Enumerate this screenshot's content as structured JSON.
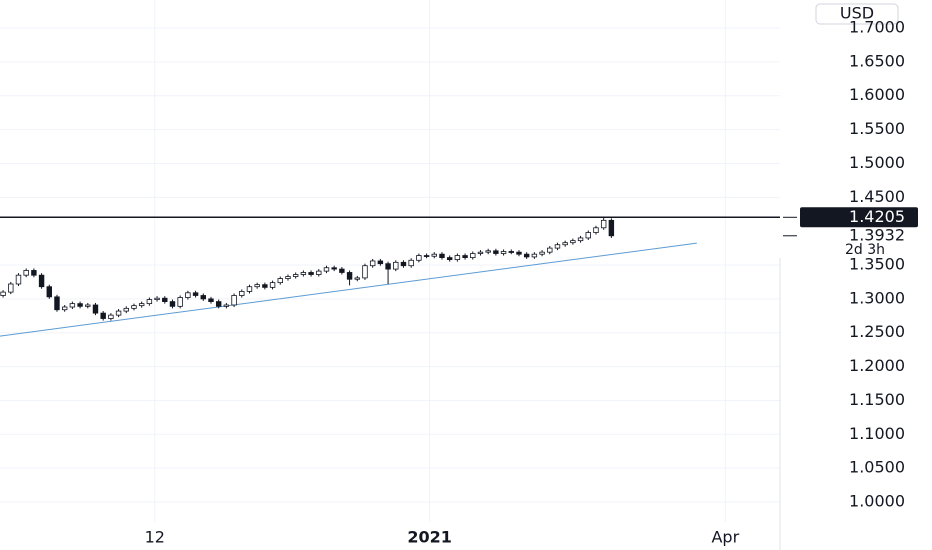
{
  "chart_data": {
    "type": "candlestick",
    "currency": "USD",
    "open": [
      1.305,
      1.31,
      1.322,
      1.335,
      1.342,
      1.335,
      1.318,
      1.303,
      1.284,
      1.288,
      1.293,
      1.289,
      1.291,
      1.279,
      1.271,
      1.276,
      1.282,
      1.286,
      1.29,
      1.293,
      1.299,
      1.301,
      1.296,
      1.289,
      1.302,
      1.309,
      1.305,
      1.3,
      1.296,
      1.289,
      1.291,
      1.305,
      1.311,
      1.318,
      1.321,
      1.317,
      1.324,
      1.33,
      1.333,
      1.336,
      1.339,
      1.336,
      1.341,
      1.346,
      1.344,
      1.339,
      1.329,
      1.331,
      1.349,
      1.356,
      1.352,
      1.344,
      1.354,
      1.349,
      1.357,
      1.364,
      1.363,
      1.366,
      1.361,
      1.358,
      1.364,
      1.361,
      1.367,
      1.369,
      1.371,
      1.367,
      1.37,
      1.369,
      1.366,
      1.362,
      1.366,
      1.369,
      1.375,
      1.38,
      1.383,
      1.386,
      1.39,
      1.398,
      1.405,
      1.416
    ],
    "high": [
      1.313,
      1.325,
      1.338,
      1.345,
      1.345,
      1.338,
      1.321,
      1.306,
      1.291,
      1.296,
      1.296,
      1.294,
      1.294,
      1.282,
      1.279,
      1.285,
      1.289,
      1.293,
      1.296,
      1.302,
      1.304,
      1.304,
      1.299,
      1.305,
      1.312,
      1.312,
      1.308,
      1.303,
      1.299,
      1.294,
      1.308,
      1.314,
      1.321,
      1.324,
      1.324,
      1.327,
      1.333,
      1.336,
      1.339,
      1.342,
      1.342,
      1.344,
      1.349,
      1.349,
      1.347,
      1.342,
      1.334,
      1.352,
      1.359,
      1.359,
      1.355,
      1.357,
      1.357,
      1.36,
      1.367,
      1.367,
      1.369,
      1.369,
      1.364,
      1.367,
      1.367,
      1.37,
      1.372,
      1.374,
      1.374,
      1.373,
      1.373,
      1.372,
      1.369,
      1.369,
      1.372,
      1.378,
      1.383,
      1.386,
      1.389,
      1.393,
      1.401,
      1.408,
      1.4205,
      1.419
    ],
    "low": [
      1.302,
      1.307,
      1.319,
      1.332,
      1.332,
      1.315,
      1.3,
      1.281,
      1.281,
      1.285,
      1.286,
      1.286,
      1.276,
      1.268,
      1.268,
      1.273,
      1.279,
      1.283,
      1.287,
      1.29,
      1.296,
      1.293,
      1.286,
      1.286,
      1.299,
      1.302,
      1.297,
      1.293,
      1.286,
      1.286,
      1.288,
      1.302,
      1.308,
      1.315,
      1.314,
      1.314,
      1.321,
      1.327,
      1.33,
      1.333,
      1.333,
      1.333,
      1.338,
      1.341,
      1.336,
      1.32,
      1.326,
      1.328,
      1.346,
      1.349,
      1.322,
      1.341,
      1.346,
      1.346,
      1.354,
      1.36,
      1.36,
      1.358,
      1.355,
      1.355,
      1.358,
      1.358,
      1.364,
      1.366,
      1.364,
      1.364,
      1.366,
      1.363,
      1.359,
      1.359,
      1.363,
      1.366,
      1.372,
      1.377,
      1.38,
      1.383,
      1.387,
      1.395,
      1.402,
      1.39
    ],
    "close": [
      1.31,
      1.322,
      1.335,
      1.342,
      1.335,
      1.318,
      1.303,
      1.284,
      1.288,
      1.293,
      1.289,
      1.291,
      1.279,
      1.271,
      1.276,
      1.282,
      1.286,
      1.29,
      1.293,
      1.299,
      1.301,
      1.296,
      1.289,
      1.302,
      1.309,
      1.305,
      1.3,
      1.296,
      1.289,
      1.291,
      1.305,
      1.311,
      1.318,
      1.321,
      1.317,
      1.324,
      1.33,
      1.333,
      1.336,
      1.339,
      1.336,
      1.341,
      1.346,
      1.344,
      1.339,
      1.329,
      1.331,
      1.349,
      1.356,
      1.352,
      1.344,
      1.354,
      1.349,
      1.357,
      1.364,
      1.363,
      1.366,
      1.361,
      1.358,
      1.364,
      1.361,
      1.367,
      1.369,
      1.371,
      1.367,
      1.37,
      1.369,
      1.366,
      1.362,
      1.366,
      1.369,
      1.375,
      1.38,
      1.383,
      1.386,
      1.39,
      1.398,
      1.405,
      1.416,
      1.3932
    ],
    "up_color": "#ffffff",
    "down_color": "#131722",
    "countdown": "2d 3h",
    "hline": 1.4205,
    "trendline": {
      "x": [
        -0.4,
        90.1
      ],
      "y": [
        1.245,
        1.3824
      ],
      "color": "#5b9bd5"
    },
    "xlim": [
      -0.4,
      100.9
    ],
    "xticks": [
      {
        "value": 19.7,
        "label": "12"
      },
      {
        "value": 55.4,
        "label": "2021"
      },
      {
        "value": 93.8,
        "label": "Apr"
      }
    ],
    "ylim": [
      0.9705,
      1.7414
    ],
    "yticks": [
      {
        "value": 1.0,
        "label": "1.0000"
      },
      {
        "value": 1.05,
        "label": "1.0500"
      },
      {
        "value": 1.1,
        "label": "1.1000"
      },
      {
        "value": 1.15,
        "label": "1.1500"
      },
      {
        "value": 1.2,
        "label": "1.2000"
      },
      {
        "value": 1.25,
        "label": "1.2500"
      },
      {
        "value": 1.3,
        "label": "1.3000"
      },
      {
        "value": 1.35,
        "label": "1.3500"
      },
      {
        "value": 1.45,
        "label": "1.4500"
      },
      {
        "value": 1.5,
        "label": "1.5000"
      },
      {
        "value": 1.55,
        "label": "1.5500"
      },
      {
        "value": 1.6,
        "label": "1.6000"
      },
      {
        "value": 1.65,
        "label": "1.6500"
      },
      {
        "value": 1.7,
        "label": "1.7000"
      }
    ],
    "grid": true
  }
}
